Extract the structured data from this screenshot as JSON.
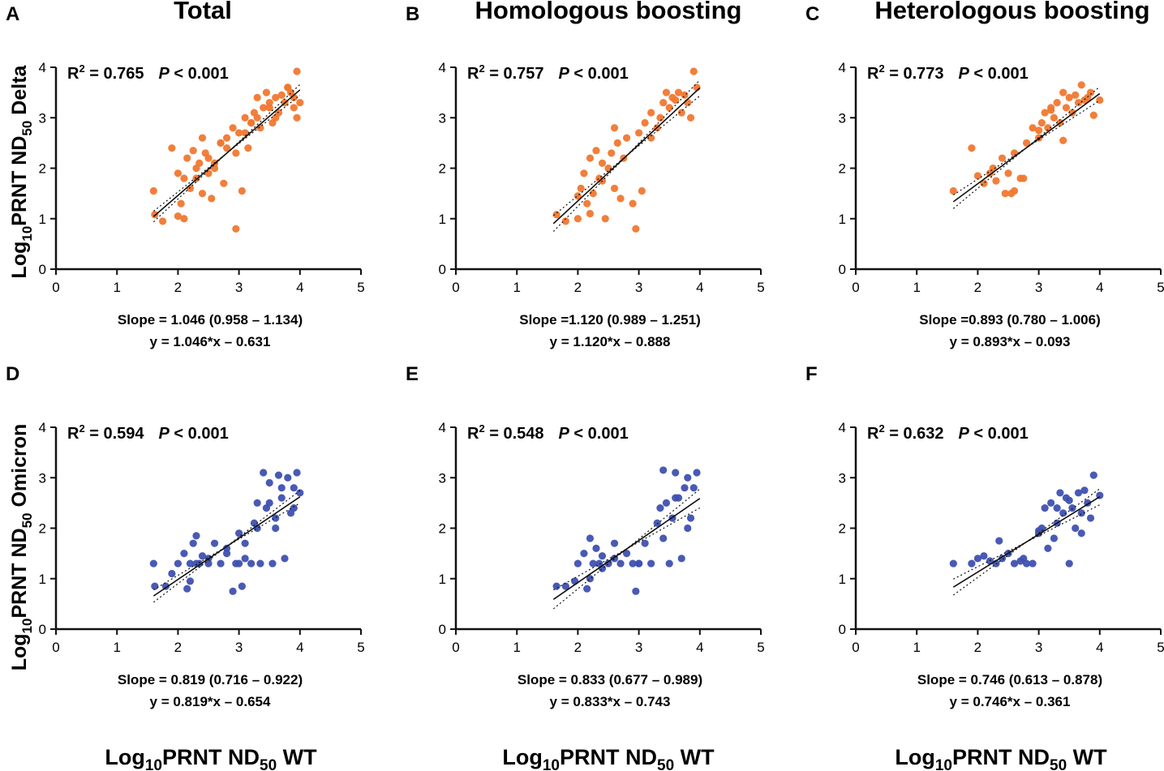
{
  "colors": {
    "delta": "#F07830",
    "omicron": "#3F51B0",
    "axis": "#111111",
    "fit": "#111111"
  },
  "column_titles": [
    "Total",
    "Homologous boosting",
    "Heterologous boosting"
  ],
  "y_labels": {
    "delta": {
      "main": "Log",
      "sub1": "10",
      "mid": "PRNT ND",
      "sub2": "50",
      "tail": " Delta"
    },
    "omicron": {
      "main": "Log",
      "sub1": "10",
      "mid": "PRNT ND",
      "sub2": "50",
      "tail": " Omicron"
    }
  },
  "x_label": {
    "main": "Log",
    "sub1": "10",
    "mid": "PRNT ND",
    "sub2": "50",
    "tail": " WT"
  },
  "chart_data": [
    {
      "type": "scatter",
      "letter": "A",
      "variant": "delta",
      "r2_label": "R",
      "r2_sup": "2",
      "r2_value": " = 0.765",
      "p_italic": "P",
      "p_value": " < 0.001",
      "slope_text": "Slope = 1.046 (0.958 – 1.134)",
      "equation": "y = 1.046*x – 0.631",
      "slope": 1.046,
      "intercept": -0.631,
      "ci_low": 0.958,
      "ci_high": 1.134,
      "xlim": [
        0,
        5
      ],
      "ylim": [
        0,
        4
      ],
      "xticks": [
        "0",
        "1",
        "2",
        "3",
        "4",
        "5"
      ],
      "yticks": [
        "0",
        "1",
        "2",
        "3",
        "4"
      ],
      "x_range": [
        1.6,
        4.0
      ],
      "x": [
        1.6,
        1.62,
        1.75,
        1.9,
        2.0,
        2.05,
        2.1,
        2.15,
        2.2,
        2.25,
        2.3,
        2.35,
        2.4,
        2.45,
        2.5,
        2.55,
        2.6,
        2.7,
        2.75,
        2.8,
        2.9,
        2.95,
        3.0,
        3.05,
        3.1,
        3.15,
        3.2,
        3.25,
        3.3,
        3.35,
        3.4,
        3.45,
        3.5,
        3.55,
        3.6,
        3.65,
        3.7,
        3.75,
        3.8,
        3.85,
        3.9,
        3.95,
        4.0,
        2.1,
        2.3,
        2.5,
        2.7,
        2.95,
        3.3,
        3.6,
        3.9,
        2.0,
        2.6,
        2.8,
        3.1,
        3.5,
        3.8,
        3.95,
        2.4,
        3.2
      ],
      "y": [
        1.55,
        1.08,
        0.95,
        2.4,
        1.9,
        1.3,
        1.0,
        2.2,
        1.6,
        2.35,
        1.8,
        2.1,
        1.5,
        2.3,
        1.9,
        1.4,
        2.0,
        2.5,
        1.7,
        2.6,
        2.8,
        0.8,
        2.7,
        1.55,
        3.0,
        2.4,
        2.9,
        3.1,
        3.4,
        2.8,
        3.2,
        3.5,
        3.3,
        2.9,
        3.4,
        3.1,
        3.45,
        3.3,
        3.6,
        3.5,
        3.4,
        3.92,
        3.3,
        1.8,
        2.0,
        2.2,
        2.5,
        2.3,
        3.0,
        3.0,
        3.2,
        1.05,
        2.1,
        2.4,
        2.7,
        3.2,
        3.6,
        3.0,
        2.6,
        2.9
      ]
    },
    {
      "type": "scatter",
      "letter": "B",
      "variant": "delta",
      "r2_label": "R",
      "r2_sup": "2",
      "r2_value": " = 0.757",
      "p_italic": "P",
      "p_value": " < 0.001",
      "slope_text": "Slope =1.120 (0.989 – 1.251)",
      "equation": "y = 1.120*x – 0.888",
      "slope": 1.12,
      "intercept": -0.888,
      "ci_low": 0.989,
      "ci_high": 1.251,
      "xlim": [
        0,
        5
      ],
      "ylim": [
        0,
        4
      ],
      "xticks": [
        "0",
        "1",
        "2",
        "3",
        "4",
        "5"
      ],
      "yticks": [
        "0",
        "1",
        "2",
        "3",
        "4"
      ],
      "x_range": [
        1.6,
        4.0
      ],
      "x": [
        1.65,
        1.8,
        2.0,
        2.05,
        2.1,
        2.15,
        2.2,
        2.25,
        2.3,
        2.35,
        2.4,
        2.45,
        2.5,
        2.55,
        2.6,
        2.65,
        2.7,
        2.8,
        2.9,
        2.95,
        3.0,
        3.1,
        3.2,
        3.3,
        3.4,
        3.45,
        3.5,
        3.55,
        3.6,
        3.65,
        3.7,
        3.75,
        3.8,
        3.9,
        3.95,
        2.2,
        2.4,
        2.75,
        3.05,
        3.35,
        3.85,
        2.0,
        2.6,
        3.2
      ],
      "y": [
        1.08,
        0.95,
        1.0,
        1.6,
        1.9,
        1.3,
        2.2,
        1.5,
        2.35,
        1.8,
        2.1,
        1.0,
        2.0,
        2.3,
        1.6,
        2.5,
        1.4,
        2.6,
        1.3,
        0.8,
        2.7,
        2.9,
        3.1,
        2.8,
        3.3,
        3.5,
        3.2,
        3.4,
        3.35,
        3.5,
        3.1,
        3.45,
        3.3,
        3.92,
        3.6,
        1.1,
        1.75,
        2.2,
        1.55,
        3.0,
        3.0,
        1.45,
        2.8,
        2.6
      ]
    },
    {
      "type": "scatter",
      "letter": "C",
      "variant": "delta",
      "r2_label": "R",
      "r2_sup": "2",
      "r2_value": " = 0.773",
      "p_italic": "P",
      "p_value": " < 0.001",
      "slope_text": "Slope =0.893 (0.780 – 1.006)",
      "equation": "y = 0.893*x – 0.093",
      "slope": 0.893,
      "intercept": -0.093,
      "ci_low": 0.78,
      "ci_high": 1.006,
      "xlim": [
        0,
        5
      ],
      "ylim": [
        0,
        4
      ],
      "xticks": [
        "0",
        "1",
        "2",
        "3",
        "4",
        "5"
      ],
      "yticks": [
        "0",
        "1",
        "2",
        "3",
        "4"
      ],
      "x_range": [
        1.6,
        4.0
      ],
      "x": [
        1.6,
        1.9,
        2.0,
        2.1,
        2.2,
        2.25,
        2.3,
        2.4,
        2.45,
        2.5,
        2.55,
        2.6,
        2.7,
        2.75,
        2.8,
        2.9,
        3.0,
        3.05,
        3.1,
        3.15,
        3.2,
        3.25,
        3.3,
        3.35,
        3.4,
        3.45,
        3.5,
        3.55,
        3.6,
        3.65,
        3.7,
        3.75,
        3.8,
        3.85,
        3.9,
        4.0,
        3.0,
        3.4,
        2.6,
        3.2
      ],
      "y": [
        1.55,
        2.4,
        1.85,
        1.7,
        1.9,
        2.0,
        1.75,
        2.2,
        1.5,
        1.9,
        1.5,
        2.3,
        1.8,
        1.8,
        2.5,
        2.8,
        2.6,
        2.9,
        3.1,
        2.8,
        3.2,
        3.0,
        3.3,
        2.9,
        3.5,
        3.2,
        3.4,
        3.1,
        3.45,
        3.3,
        3.65,
        3.35,
        3.4,
        3.5,
        3.05,
        3.35,
        2.75,
        2.55,
        1.55,
        3.15
      ]
    },
    {
      "type": "scatter",
      "letter": "D",
      "variant": "omicron",
      "r2_label": "R",
      "r2_sup": "2",
      "r2_value": " = 0.594",
      "p_italic": "P",
      "p_value": " < 0.001",
      "slope_text": "Slope = 0.819 (0.716 – 0.922)",
      "equation": "y = 0.819*x – 0.654",
      "slope": 0.819,
      "intercept": -0.654,
      "ci_low": 0.716,
      "ci_high": 0.922,
      "xlim": [
        0,
        5
      ],
      "ylim": [
        0,
        4
      ],
      "xticks": [
        "0",
        "1",
        "2",
        "3",
        "4",
        "5"
      ],
      "yticks": [
        "0",
        "1",
        "2",
        "3",
        "4"
      ],
      "x_range": [
        1.6,
        4.0
      ],
      "x": [
        1.6,
        1.62,
        1.8,
        1.9,
        2.0,
        2.1,
        2.15,
        2.2,
        2.25,
        2.3,
        2.35,
        2.4,
        2.5,
        2.6,
        2.7,
        2.8,
        2.9,
        2.95,
        3.0,
        3.05,
        3.1,
        3.2,
        3.25,
        3.3,
        3.35,
        3.4,
        3.45,
        3.5,
        3.55,
        3.6,
        3.65,
        3.7,
        3.75,
        3.8,
        3.85,
        3.9,
        3.95,
        4.0,
        2.2,
        2.5,
        2.8,
        3.1,
        3.3,
        3.5,
        3.7,
        3.9,
        2.3,
        3.0,
        3.6
      ],
      "y": [
        1.3,
        0.85,
        0.85,
        1.1,
        1.3,
        1.5,
        0.8,
        1.3,
        1.7,
        1.85,
        1.3,
        1.45,
        1.3,
        1.7,
        1.3,
        1.5,
        0.75,
        1.3,
        1.3,
        0.85,
        1.7,
        1.3,
        2.1,
        2.5,
        1.3,
        3.1,
        2.4,
        2.9,
        1.3,
        2.2,
        3.05,
        2.6,
        1.4,
        3.0,
        2.3,
        2.8,
        3.1,
        2.7,
        0.95,
        1.4,
        1.6,
        1.4,
        2.0,
        2.5,
        2.8,
        2.4,
        1.3,
        1.9,
        2.0
      ]
    },
    {
      "type": "scatter",
      "letter": "E",
      "variant": "omicron",
      "r2_label": "R",
      "r2_sup": "2",
      "r2_value": " = 0.548",
      "p_italic": "P",
      "p_value": " < 0.001",
      "slope_text": "Slope = 0.833 (0.677 – 0.989)",
      "equation": "y = 0.833*x – 0.743",
      "slope": 0.833,
      "intercept": -0.743,
      "ci_low": 0.677,
      "ci_high": 0.989,
      "xlim": [
        0,
        5
      ],
      "ylim": [
        0,
        4
      ],
      "xticks": [
        "0",
        "1",
        "2",
        "3",
        "4",
        "5"
      ],
      "yticks": [
        "0",
        "1",
        "2",
        "3",
        "4"
      ],
      "x_range": [
        1.6,
        4.0
      ],
      "x": [
        1.65,
        1.8,
        1.95,
        2.0,
        2.1,
        2.15,
        2.2,
        2.25,
        2.3,
        2.35,
        2.4,
        2.5,
        2.6,
        2.7,
        2.8,
        2.9,
        2.95,
        3.0,
        3.1,
        3.2,
        3.3,
        3.35,
        3.4,
        3.45,
        3.5,
        3.55,
        3.6,
        3.65,
        3.7,
        3.75,
        3.8,
        3.85,
        3.9,
        3.95,
        2.2,
        2.6,
        3.0,
        3.4,
        3.8,
        2.4,
        3.6
      ],
      "y": [
        0.85,
        0.85,
        0.95,
        1.3,
        1.5,
        0.8,
        1.8,
        1.3,
        1.6,
        1.3,
        1.45,
        1.3,
        1.7,
        1.3,
        1.5,
        1.3,
        0.75,
        1.3,
        1.7,
        1.3,
        2.1,
        2.4,
        3.15,
        2.5,
        1.3,
        2.2,
        3.1,
        2.6,
        1.4,
        2.8,
        3.0,
        2.2,
        2.8,
        3.1,
        1.0,
        1.4,
        1.3,
        1.8,
        2.0,
        1.2,
        2.6
      ]
    },
    {
      "type": "scatter",
      "letter": "F",
      "variant": "omicron",
      "r2_label": "R",
      "r2_sup": "2",
      "r2_value": " = 0.632",
      "p_italic": "P",
      "p_value": " < 0.001",
      "slope_text": "Slope = 0.746 (0.613 – 0.878)",
      "equation": "y = 0.746*x – 0.361",
      "slope": 0.746,
      "intercept": -0.361,
      "ci_low": 0.613,
      "ci_high": 0.878,
      "xlim": [
        0,
        5
      ],
      "ylim": [
        0,
        4
      ],
      "xticks": [
        "0",
        "1",
        "2",
        "3",
        "4",
        "5"
      ],
      "yticks": [
        "0",
        "1",
        "2",
        "3",
        "4"
      ],
      "x_range": [
        1.6,
        4.0
      ],
      "x": [
        1.6,
        1.9,
        2.0,
        2.1,
        2.2,
        2.3,
        2.35,
        2.4,
        2.5,
        2.6,
        2.7,
        2.75,
        2.8,
        2.9,
        3.0,
        3.05,
        3.1,
        3.15,
        3.2,
        3.25,
        3.3,
        3.35,
        3.4,
        3.45,
        3.5,
        3.55,
        3.6,
        3.65,
        3.7,
        3.75,
        3.8,
        3.85,
        3.9,
        4.0,
        3.0,
        3.3,
        3.5,
        3.7
      ],
      "y": [
        1.3,
        1.3,
        1.4,
        1.45,
        1.35,
        1.3,
        1.75,
        1.4,
        1.5,
        1.3,
        1.35,
        1.4,
        1.3,
        1.3,
        1.9,
        2.0,
        2.4,
        1.6,
        2.5,
        1.8,
        2.4,
        2.7,
        2.3,
        2.6,
        1.3,
        2.4,
        2.0,
        2.7,
        2.3,
        2.75,
        2.5,
        2.2,
        3.05,
        2.65,
        1.95,
        2.1,
        2.55,
        1.9
      ]
    }
  ]
}
